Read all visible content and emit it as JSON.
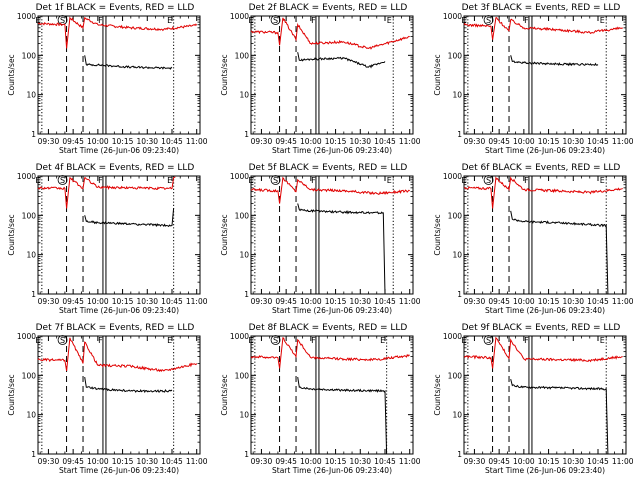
{
  "figure": {
    "background": "#ffffff",
    "foreground": "#000000"
  },
  "chart_data": [
    {
      "type": "line",
      "title": "Det 1f BLACK = Events, RED = LLD",
      "xlabel": "Start Time (26-Jun-06 09:23:40)",
      "ylabel": "Counts/sec",
      "yscale": "log",
      "ylim": [
        1,
        1000
      ],
      "xlim": [
        "09:23:40",
        "11:02:00"
      ],
      "xticks": [
        "09:30",
        "09:45",
        "10:00",
        "10:15",
        "10:30",
        "10:45",
        "11:00"
      ],
      "yticks": [
        "1",
        "10",
        "100",
        "1000"
      ],
      "grid": false,
      "legend": "title text",
      "series": [
        {
          "name": "LLD",
          "color": "#e00000",
          "x": [
            "09:23:40",
            "09:40",
            "09:41",
            "09:43",
            "09:51",
            "09:52",
            "10:00",
            "10:20",
            "10:40",
            "11:00"
          ],
          "values": [
            650,
            600,
            150,
            900,
            500,
            900,
            600,
            500,
            460,
            580
          ]
        },
        {
          "name": "Events",
          "color": "#000000",
          "x": [
            "09:52",
            "09:53",
            "10:00",
            "10:20",
            "10:45"
          ],
          "values": [
            100,
            58,
            57,
            50,
            47
          ]
        }
      ],
      "vlines": [
        {
          "label": "E",
          "x": "09:26",
          "style": "dotted"
        },
        {
          "label": "S",
          "x": "09:41",
          "style": "dashed"
        },
        {
          "label": "",
          "x": "09:51",
          "style": "dashed"
        },
        {
          "label": "F",
          "x": "10:04",
          "style": "solid"
        },
        {
          "label": "E",
          "x": "10:46",
          "style": "dotted"
        }
      ]
    },
    {
      "type": "line",
      "title": "Det 2f BLACK = Events, RED = LLD",
      "xlabel": "Start Time (26-Jun-06 09:23:40)",
      "ylabel": "Counts/sec",
      "yscale": "log",
      "ylim": [
        1,
        1000
      ],
      "xlim": [
        "09:23:40",
        "11:02:00"
      ],
      "xticks": [
        "09:30",
        "09:45",
        "10:00",
        "10:15",
        "10:30",
        "10:45",
        "11:00"
      ],
      "yticks": [
        "1",
        "10",
        "100",
        "1000"
      ],
      "grid": false,
      "legend": "title text",
      "series": [
        {
          "name": "LLD",
          "color": "#e00000",
          "x": [
            "09:23:40",
            "09:40",
            "09:41",
            "09:43",
            "09:51",
            "09:52",
            "10:00",
            "10:20",
            "10:35",
            "11:00"
          ],
          "values": [
            400,
            380,
            180,
            900,
            250,
            600,
            200,
            220,
            150,
            300
          ]
        },
        {
          "name": "Events",
          "color": "#000000",
          "x": [
            "09:52",
            "09:53",
            "10:00",
            "10:20",
            "10:35",
            "10:45"
          ],
          "values": [
            120,
            75,
            80,
            85,
            50,
            70
          ]
        }
      ],
      "vlines": [
        {
          "label": "E",
          "x": "09:26",
          "style": "dotted"
        },
        {
          "label": "S",
          "x": "09:41",
          "style": "dashed"
        },
        {
          "label": "",
          "x": "09:51",
          "style": "dashed"
        },
        {
          "label": "F",
          "x": "10:04",
          "style": "solid"
        },
        {
          "label": "E",
          "x": "10:50",
          "style": "dotted"
        }
      ]
    },
    {
      "type": "line",
      "title": "Det 3f BLACK = Events, RED = LLD",
      "xlabel": "Start Time (26-Jun-06 09:23:40)",
      "ylabel": "Counts/sec",
      "yscale": "log",
      "ylim": [
        1,
        1000
      ],
      "xlim": [
        "09:23:40",
        "11:02:00"
      ],
      "xticks": [
        "09:30",
        "09:45",
        "10:00",
        "10:15",
        "10:30",
        "10:45",
        "11:00"
      ],
      "yticks": [
        "1",
        "10",
        "100",
        "1000"
      ],
      "grid": false,
      "legend": "title text",
      "series": [
        {
          "name": "LLD",
          "color": "#e00000",
          "x": [
            "09:23:40",
            "09:40",
            "09:41",
            "09:43",
            "09:51",
            "09:52",
            "10:00",
            "10:20",
            "10:40",
            "11:00"
          ],
          "values": [
            600,
            550,
            250,
            900,
            420,
            800,
            500,
            450,
            380,
            500
          ]
        },
        {
          "name": "Events",
          "color": "#000000",
          "x": [
            "09:52",
            "09:53",
            "10:00",
            "10:20",
            "10:45"
          ],
          "values": [
            100,
            70,
            65,
            60,
            58
          ]
        }
      ],
      "vlines": [
        {
          "label": "E",
          "x": "09:26",
          "style": "dotted"
        },
        {
          "label": "S",
          "x": "09:41",
          "style": "dashed"
        },
        {
          "label": "",
          "x": "09:51",
          "style": "dashed"
        },
        {
          "label": "F",
          "x": "10:04",
          "style": "solid"
        },
        {
          "label": "E",
          "x": "10:50",
          "style": "dotted"
        }
      ]
    },
    {
      "type": "line",
      "title": "Det 4f BLACK = Events, RED = LLD",
      "xlabel": "Start Time (26-Jun-06 09:23:40)",
      "ylabel": "Counts/sec",
      "yscale": "log",
      "ylim": [
        1,
        1000
      ],
      "xlim": [
        "09:23:40",
        "11:02:00"
      ],
      "xticks": [
        "09:30",
        "09:45",
        "10:00",
        "10:15",
        "10:30",
        "10:45",
        "11:00"
      ],
      "yticks": [
        "1",
        "10",
        "100",
        "1000"
      ],
      "grid": false,
      "legend": "title text",
      "series": [
        {
          "name": "LLD",
          "color": "#e00000",
          "x": [
            "09:23:40",
            "09:40",
            "09:41",
            "09:43",
            "09:51",
            "09:52",
            "10:00",
            "10:20",
            "10:45",
            "10:46",
            "10:47"
          ],
          "values": [
            500,
            480,
            150,
            900,
            480,
            900,
            520,
            500,
            480,
            900,
            950
          ]
        },
        {
          "name": "Events",
          "color": "#000000",
          "x": [
            "09:52",
            "09:53",
            "10:00",
            "10:20",
            "10:45",
            "10:46"
          ],
          "values": [
            100,
            70,
            65,
            60,
            55,
            150
          ]
        }
      ],
      "vlines": [
        {
          "label": "E",
          "x": "09:26",
          "style": "dotted"
        },
        {
          "label": "S",
          "x": "09:41",
          "style": "dashed"
        },
        {
          "label": "",
          "x": "09:51",
          "style": "dashed"
        },
        {
          "label": "F",
          "x": "10:04",
          "style": "solid"
        },
        {
          "label": "E",
          "x": "10:46",
          "style": "dotted"
        }
      ]
    },
    {
      "type": "line",
      "title": "Det 5f BLACK = Events, RED = LLD",
      "xlabel": "Start Time (26-Jun-06 09:23:40)",
      "ylabel": "Counts/sec",
      "yscale": "log",
      "ylim": [
        1,
        1000
      ],
      "xlim": [
        "09:23:40",
        "11:02:00"
      ],
      "xticks": [
        "09:30",
        "09:45",
        "10:00",
        "10:15",
        "10:30",
        "10:45",
        "11:00"
      ],
      "yticks": [
        "1",
        "10",
        "100",
        "1000"
      ],
      "grid": false,
      "legend": "title text",
      "series": [
        {
          "name": "LLD",
          "color": "#e00000",
          "x": [
            "09:23:40",
            "09:40",
            "09:41",
            "09:43",
            "09:51",
            "09:52",
            "10:00",
            "10:20",
            "10:40",
            "11:00"
          ],
          "values": [
            450,
            420,
            200,
            900,
            400,
            800,
            450,
            420,
            360,
            420
          ]
        },
        {
          "name": "Events",
          "color": "#000000",
          "x": [
            "09:52",
            "09:53",
            "10:00",
            "10:20",
            "10:44",
            "10:45"
          ],
          "values": [
            200,
            140,
            130,
            120,
            115,
            1
          ]
        }
      ],
      "vlines": [
        {
          "label": "E",
          "x": "09:26",
          "style": "dotted"
        },
        {
          "label": "S",
          "x": "09:41",
          "style": "dashed"
        },
        {
          "label": "",
          "x": "09:51",
          "style": "dashed"
        },
        {
          "label": "F",
          "x": "10:04",
          "style": "solid"
        },
        {
          "label": "E",
          "x": "10:50",
          "style": "dotted"
        }
      ]
    },
    {
      "type": "line",
      "title": "Det 6f BLACK = Events, RED = LLD",
      "xlabel": "Start Time (26-Jun-06 09:23:40)",
      "ylabel": "Counts/sec",
      "yscale": "log",
      "ylim": [
        1,
        1000
      ],
      "xlim": [
        "09:23:40",
        "11:02:00"
      ],
      "xticks": [
        "09:30",
        "09:45",
        "10:00",
        "10:15",
        "10:30",
        "10:45",
        "11:00"
      ],
      "yticks": [
        "1",
        "10",
        "100",
        "1000"
      ],
      "grid": false,
      "legend": "title text",
      "series": [
        {
          "name": "LLD",
          "color": "#e00000",
          "x": [
            "09:23:40",
            "09:40",
            "09:41",
            "09:43",
            "09:51",
            "09:52",
            "10:00",
            "10:20",
            "10:40",
            "11:00"
          ],
          "values": [
            500,
            480,
            150,
            900,
            450,
            900,
            450,
            420,
            380,
            480
          ]
        },
        {
          "name": "Events",
          "color": "#000000",
          "x": [
            "09:52",
            "09:53",
            "10:00",
            "10:20",
            "10:50",
            "10:51"
          ],
          "values": [
            130,
            80,
            70,
            65,
            55,
            1
          ]
        }
      ],
      "vlines": [
        {
          "label": "E",
          "x": "09:26",
          "style": "dotted"
        },
        {
          "label": "S",
          "x": "09:41",
          "style": "dashed"
        },
        {
          "label": "",
          "x": "09:51",
          "style": "dashed"
        },
        {
          "label": "F",
          "x": "10:04",
          "style": "solid"
        },
        {
          "label": "E",
          "x": "10:50",
          "style": "dotted"
        }
      ]
    },
    {
      "type": "line",
      "title": "Det 7f BLACK = Events, RED = LLD",
      "xlabel": "Start Time (26-Jun-06 09:23:40)",
      "ylabel": "Counts/sec",
      "yscale": "log",
      "ylim": [
        1,
        1000
      ],
      "xlim": [
        "09:23:40",
        "11:02:00"
      ],
      "xticks": [
        "09:30",
        "09:45",
        "10:00",
        "10:15",
        "10:30",
        "10:45",
        "11:00"
      ],
      "yticks": [
        "1",
        "10",
        "100",
        "1000"
      ],
      "grid": false,
      "legend": "title text",
      "series": [
        {
          "name": "LLD",
          "color": "#e00000",
          "x": [
            "09:23:40",
            "09:40",
            "09:41",
            "09:43",
            "09:51",
            "09:52",
            "10:00",
            "10:20",
            "10:40",
            "11:00"
          ],
          "values": [
            250,
            240,
            130,
            900,
            200,
            700,
            180,
            170,
            130,
            200
          ]
        },
        {
          "name": "Events",
          "color": "#000000",
          "x": [
            "09:52",
            "09:53",
            "10:00",
            "10:20",
            "10:45"
          ],
          "values": [
            90,
            50,
            45,
            40,
            40
          ]
        }
      ],
      "vlines": [
        {
          "label": "E",
          "x": "09:26",
          "style": "dotted"
        },
        {
          "label": "S",
          "x": "09:41",
          "style": "dashed"
        },
        {
          "label": "",
          "x": "09:51",
          "style": "dashed"
        },
        {
          "label": "F",
          "x": "10:04",
          "style": "solid"
        },
        {
          "label": "E",
          "x": "10:46",
          "style": "dotted"
        }
      ]
    },
    {
      "type": "line",
      "title": "Det 8f BLACK = Events, RED = LLD",
      "xlabel": "Start Time (26-Jun-06 09:23:40)",
      "ylabel": "Counts/sec",
      "yscale": "log",
      "ylim": [
        1,
        1000
      ],
      "xlim": [
        "09:23:40",
        "11:02:00"
      ],
      "xticks": [
        "09:30",
        "09:45",
        "10:00",
        "10:15",
        "10:30",
        "10:45",
        "11:00"
      ],
      "yticks": [
        "1",
        "10",
        "100",
        "1000"
      ],
      "grid": false,
      "legend": "title text",
      "series": [
        {
          "name": "LLD",
          "color": "#e00000",
          "x": [
            "09:23:40",
            "09:40",
            "09:41",
            "09:43",
            "09:51",
            "09:52",
            "10:00",
            "10:20",
            "10:40",
            "11:00"
          ],
          "values": [
            300,
            280,
            150,
            900,
            300,
            800,
            280,
            260,
            250,
            320
          ]
        },
        {
          "name": "Events",
          "color": "#000000",
          "x": [
            "09:52",
            "09:53",
            "10:00",
            "10:20",
            "10:45",
            "10:46"
          ],
          "values": [
            90,
            50,
            45,
            42,
            40,
            1
          ]
        }
      ],
      "vlines": [
        {
          "label": "E",
          "x": "09:26",
          "style": "dotted"
        },
        {
          "label": "S",
          "x": "09:41",
          "style": "dashed"
        },
        {
          "label": "",
          "x": "09:51",
          "style": "dashed"
        },
        {
          "label": "F",
          "x": "10:04",
          "style": "solid"
        },
        {
          "label": "E",
          "x": "10:46",
          "style": "dotted"
        }
      ]
    },
    {
      "type": "line",
      "title": "Det 9f BLACK = Events, RED = LLD",
      "xlabel": "Start Time (26-Jun-06 09:23:40)",
      "ylabel": "Counts/sec",
      "yscale": "log",
      "ylim": [
        1,
        1000
      ],
      "xlim": [
        "09:23:40",
        "11:02:00"
      ],
      "xticks": [
        "09:30",
        "09:45",
        "10:00",
        "10:15",
        "10:30",
        "10:45",
        "11:00"
      ],
      "yticks": [
        "1",
        "10",
        "100",
        "1000"
      ],
      "grid": false,
      "legend": "title text",
      "series": [
        {
          "name": "LLD",
          "color": "#e00000",
          "x": [
            "09:23:40",
            "09:40",
            "09:41",
            "09:43",
            "09:51",
            "09:52",
            "10:00",
            "10:20",
            "10:40",
            "11:00"
          ],
          "values": [
            300,
            280,
            150,
            900,
            270,
            800,
            260,
            250,
            240,
            300
          ]
        },
        {
          "name": "Events",
          "color": "#000000",
          "x": [
            "09:52",
            "09:53",
            "10:00",
            "10:20",
            "10:50",
            "10:51"
          ],
          "values": [
            80,
            55,
            50,
            48,
            45,
            1
          ]
        }
      ],
      "vlines": [
        {
          "label": "E",
          "x": "09:26",
          "style": "dotted"
        },
        {
          "label": "S",
          "x": "09:41",
          "style": "dashed"
        },
        {
          "label": "",
          "x": "09:51",
          "style": "dashed"
        },
        {
          "label": "F",
          "x": "10:04",
          "style": "solid"
        },
        {
          "label": "E",
          "x": "10:50",
          "style": "dotted"
        }
      ]
    }
  ]
}
